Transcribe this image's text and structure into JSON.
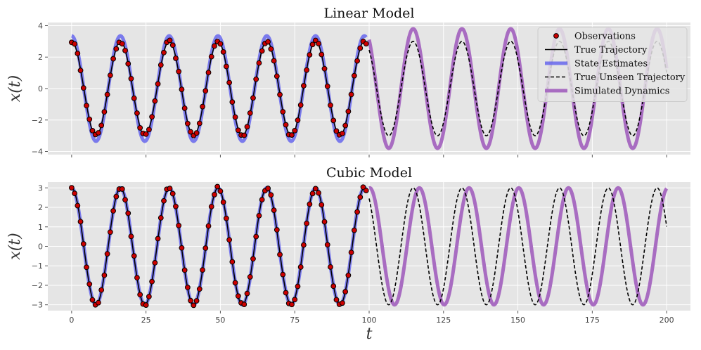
{
  "chart_data": [
    {
      "type": "line",
      "title": "Linear Model",
      "xlabel": "",
      "ylabel": "x(t)",
      "xlim": [
        -8,
        208
      ],
      "ylim": [
        -4.2,
        4.2
      ],
      "yticks": [
        -4,
        -2,
        0,
        2,
        4
      ],
      "xticks": [
        0,
        25,
        50,
        75,
        100,
        125,
        150,
        175,
        200
      ],
      "show_xtick_labels": false,
      "grid": true,
      "legend": "top-right",
      "model": {
        "observation_window": [
          0,
          99
        ],
        "forecast_window": [
          100,
          200
        ],
        "true_amplitude": 3.0,
        "true_period": 16.4,
        "estimate_amplitude": 3.35,
        "simulated_amplitude": 3.8,
        "simulated_period": 16.4,
        "simulated_phase_shift": 0,
        "observation_spacing": 1.0,
        "observation_noise": 0.08
      },
      "series": [
        {
          "name": "Observations",
          "kind": "scatter",
          "color": "#cc0000",
          "edge": "#000000"
        },
        {
          "name": "True Trajectory",
          "kind": "line",
          "color": "#000000",
          "dash": "solid"
        },
        {
          "name": "State Estimates",
          "kind": "line",
          "color": "#5555ee",
          "dash": "solid"
        },
        {
          "name": "True Unseen Trajectory",
          "kind": "line",
          "color": "#000000",
          "dash": "dashed"
        },
        {
          "name": "Simulated Dynamics",
          "kind": "line",
          "color": "#a86cc1",
          "dash": "solid"
        }
      ]
    },
    {
      "type": "line",
      "title": "Cubic Model",
      "xlabel": "t",
      "ylabel": "x(t)",
      "xlim": [
        -8,
        208
      ],
      "ylim": [
        -3.3,
        3.3
      ],
      "yticks": [
        -3,
        -2,
        -1,
        0,
        1,
        2,
        3
      ],
      "xticks": [
        0,
        25,
        50,
        75,
        100,
        125,
        150,
        175,
        200
      ],
      "show_xtick_labels": true,
      "grid": true,
      "legend": "none",
      "model": {
        "observation_window": [
          0,
          99
        ],
        "forecast_window": [
          100,
          200
        ],
        "true_amplitude": 3.0,
        "true_period": 16.4,
        "estimate_amplitude": 3.0,
        "simulated_amplitude": 3.0,
        "simulated_period": 16.7,
        "simulated_phase_shift": 0,
        "observation_spacing": 1.0,
        "observation_noise": 0.08
      },
      "series": [
        {
          "name": "Observations",
          "kind": "scatter",
          "color": "#cc0000",
          "edge": "#000000"
        },
        {
          "name": "True Trajectory",
          "kind": "line",
          "color": "#000000",
          "dash": "solid"
        },
        {
          "name": "State Estimates",
          "kind": "line",
          "color": "#5555ee",
          "dash": "solid"
        },
        {
          "name": "True Unseen Trajectory",
          "kind": "line",
          "color": "#000000",
          "dash": "dashed"
        },
        {
          "name": "Simulated Dynamics",
          "kind": "line",
          "color": "#a86cc1",
          "dash": "solid"
        }
      ]
    }
  ],
  "legend": {
    "items": [
      {
        "label": "Observations",
        "kind": "scatter"
      },
      {
        "label": "True Trajectory",
        "kind": "line"
      },
      {
        "label": "State Estimates",
        "kind": "line-thick-blue"
      },
      {
        "label": "True Unseen Trajectory",
        "kind": "dashed"
      },
      {
        "label": "Simulated Dynamics",
        "kind": "line-thick-purple"
      }
    ]
  },
  "colors": {
    "axes_bg": "#e5e5e5",
    "grid": "#ffffff",
    "observations": "#cc0000",
    "true": "#000000",
    "estimates": "#5555ee",
    "simulated": "#a86cc1"
  }
}
